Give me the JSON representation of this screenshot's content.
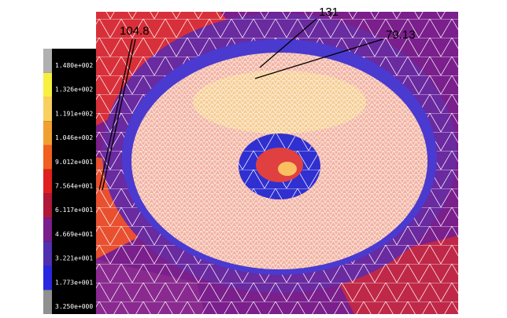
{
  "legend": {
    "labels": [
      "1.480e+002",
      "1.326e+002",
      "1.191e+002",
      "1.046e+002",
      "9.012e+001",
      "7.564e+001",
      "6.117e+001",
      "4.669e+001",
      "3.221e+001",
      "1.773e+001",
      "3.250e+000"
    ]
  },
  "annotations": [
    "104.8",
    "131",
    "79.13"
  ]
}
